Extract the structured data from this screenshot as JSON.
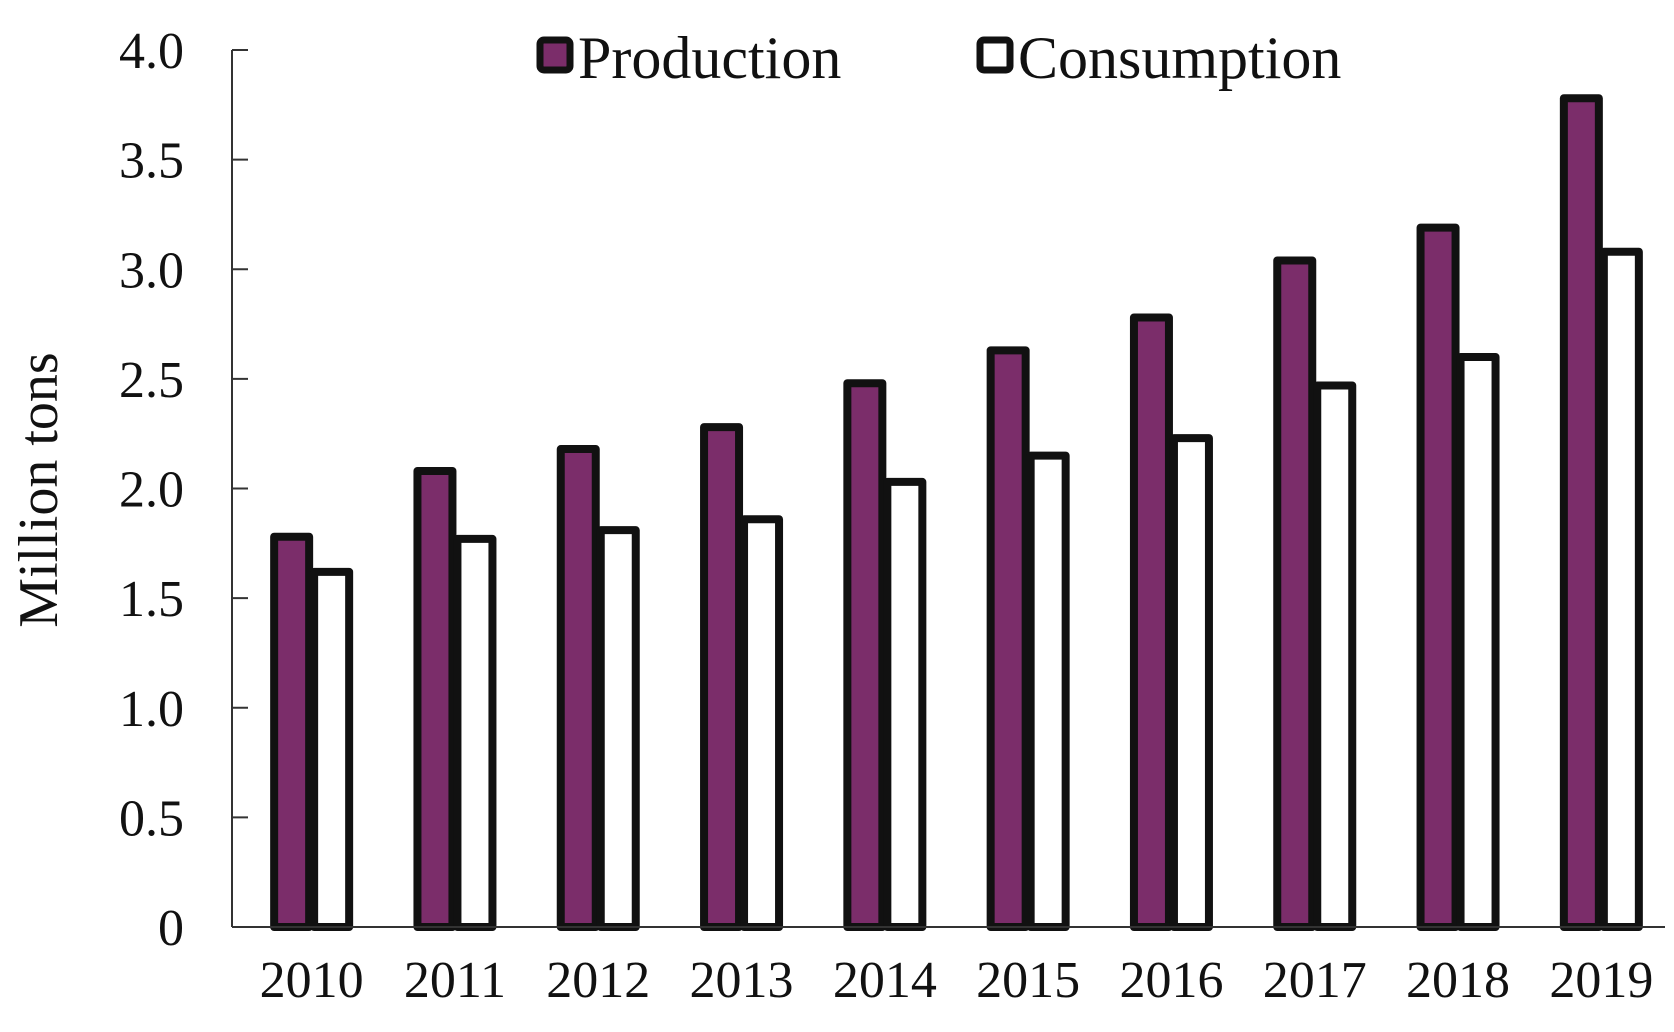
{
  "chart_data": {
    "type": "bar",
    "categories": [
      "2010",
      "2011",
      "2012",
      "2013",
      "2014",
      "2015",
      "2016",
      "2017",
      "2018",
      "2019"
    ],
    "series": [
      {
        "name": "Production",
        "values": [
          1.78,
          2.08,
          2.18,
          2.28,
          2.48,
          2.63,
          2.78,
          3.04,
          3.19,
          3.78
        ],
        "color": "#7b2d6a"
      },
      {
        "name": "Consumption",
        "values": [
          1.62,
          1.77,
          1.81,
          1.86,
          2.03,
          2.15,
          2.23,
          2.47,
          2.6,
          3.08
        ],
        "color": "#ffffff"
      }
    ],
    "ylabel": "Million tons",
    "ylim": [
      0,
      4.0
    ],
    "yticks": [
      "0",
      "0.5",
      "1.0",
      "1.5",
      "2.0",
      "2.5",
      "3.0",
      "3.5",
      "4.0"
    ],
    "grid": false,
    "legend_position": "top",
    "outline_color": "#111111"
  }
}
